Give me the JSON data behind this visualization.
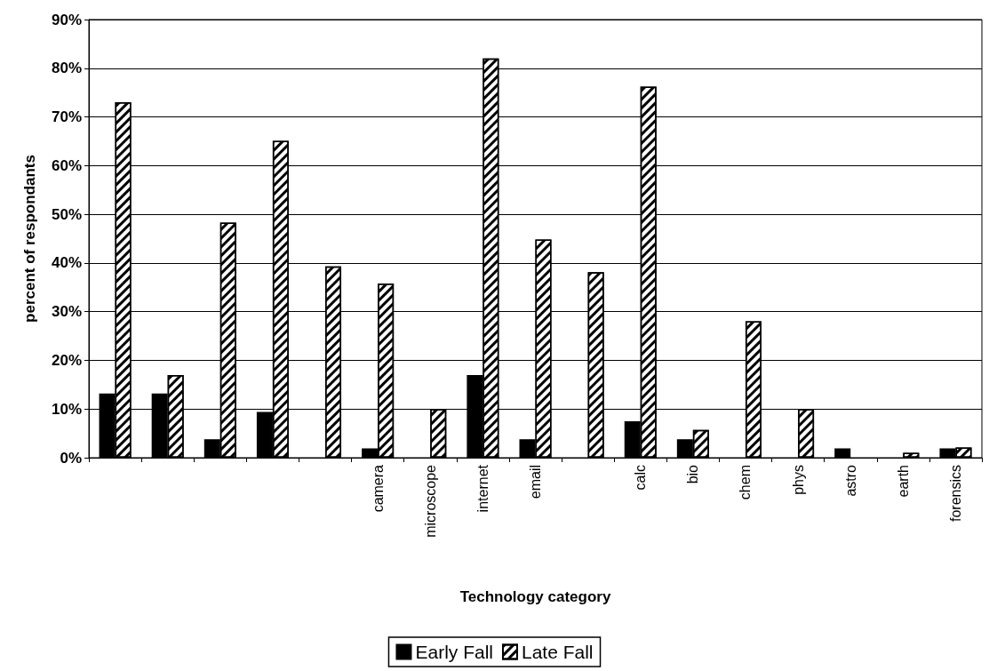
{
  "chart_data": {
    "type": "bar",
    "xlabel": "Technology category",
    "ylabel": "percent of respondants",
    "categories": [
      null,
      null,
      null,
      null,
      null,
      "camera",
      "microscope",
      "internet",
      "email",
      null,
      "calc",
      "bio",
      "chem",
      "phys",
      "astro",
      "earth",
      "forensics"
    ],
    "series": [
      {
        "name": "Early Fall",
        "color": "#000000",
        "values": [
          13.2,
          13.2,
          3.8,
          9.4,
          0,
          1.9,
          0,
          17,
          3.8,
          0,
          7.5,
          3.8,
          0,
          0,
          1.9,
          0,
          1.9
        ]
      },
      {
        "name": "Late Fall",
        "color": "#ffffff",
        "values": [
          73,
          17,
          48.3,
          65.1,
          39.3,
          35.8,
          10,
          82,
          44.8,
          38.1,
          76.2,
          5.7,
          28,
          10,
          0,
          1,
          2.1
        ]
      }
    ],
    "ylim": [
      0,
      90
    ],
    "yticks": [
      {
        "value": 0,
        "label": "0%"
      },
      {
        "value": 10,
        "label": "10%"
      },
      {
        "value": 20,
        "label": "20%"
      },
      {
        "value": 30,
        "label": "30%"
      },
      {
        "value": 40,
        "label": "40%"
      },
      {
        "value": 50,
        "label": "50%"
      },
      {
        "value": 60,
        "label": "60%"
      },
      {
        "value": 70,
        "label": "70%"
      },
      {
        "value": 80,
        "label": "80%"
      },
      {
        "value": 90,
        "label": "90%"
      }
    ],
    "grid": "y",
    "legend": "bottom"
  }
}
